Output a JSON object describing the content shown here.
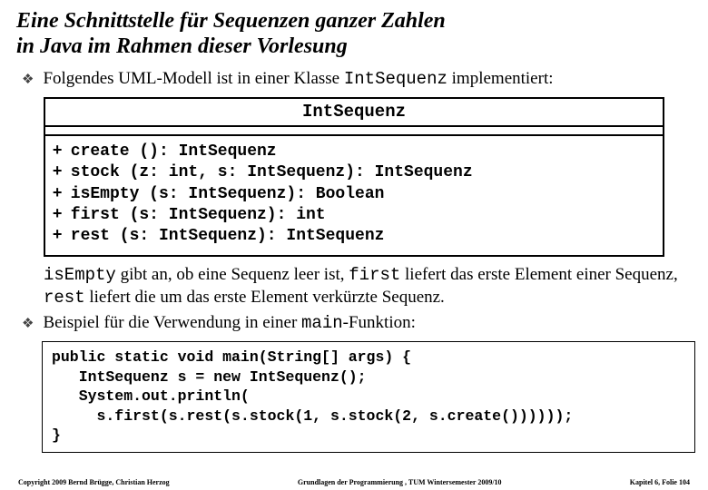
{
  "title_line1": "Eine Schnittstelle für Sequenzen ganzer Zahlen",
  "title_line2": "in Java im Rahmen dieser Vorlesung",
  "bullet1_pre": "Folgendes UML-Modell ist in einer Klasse ",
  "bullet1_code": "IntSequenz",
  "bullet1_post": " implementiert:",
  "uml_title": "IntSequenz",
  "ops": [
    {
      "vis": "+",
      "sig": "create (): IntSequenz"
    },
    {
      "vis": "+",
      "sig": "stock (z: int, s: IntSequenz): IntSequenz"
    },
    {
      "vis": "+",
      "sig": "isEmpty (s: IntSequenz): Boolean"
    },
    {
      "vis": "+",
      "sig": "first (s: IntSequenz): int"
    },
    {
      "vis": "+",
      "sig": "rest (s: IntSequenz): IntSequenz"
    }
  ],
  "para_c1": "isEmpty",
  "para_t1": " gibt an, ob eine Sequenz leer ist, ",
  "para_c2": "first",
  "para_t2": " liefert das erste Element einer Sequenz, ",
  "para_c3": "rest",
  "para_t3": " liefert die um das erste Element verkürzte Sequenz.",
  "bullet2_pre": "Beispiel für die Verwendung in einer ",
  "bullet2_code": "main",
  "bullet2_post": "-Funktion:",
  "code_l1": "public static void main(String[] args) {",
  "code_l2": "   IntSequenz s = new IntSequenz();",
  "code_l3": "   System.out.println(",
  "code_l4": "     s.first(s.rest(s.stock(1, s.stock(2, s.create())))));",
  "code_l5": "}",
  "footer_left": "Copyright 2009 Bernd Brügge, Christian Herzog",
  "footer_center": "Grundlagen der Programmierung ,   TUM Wintersemester 2009/10",
  "footer_right": "Kapitel 6, Folie 104"
}
